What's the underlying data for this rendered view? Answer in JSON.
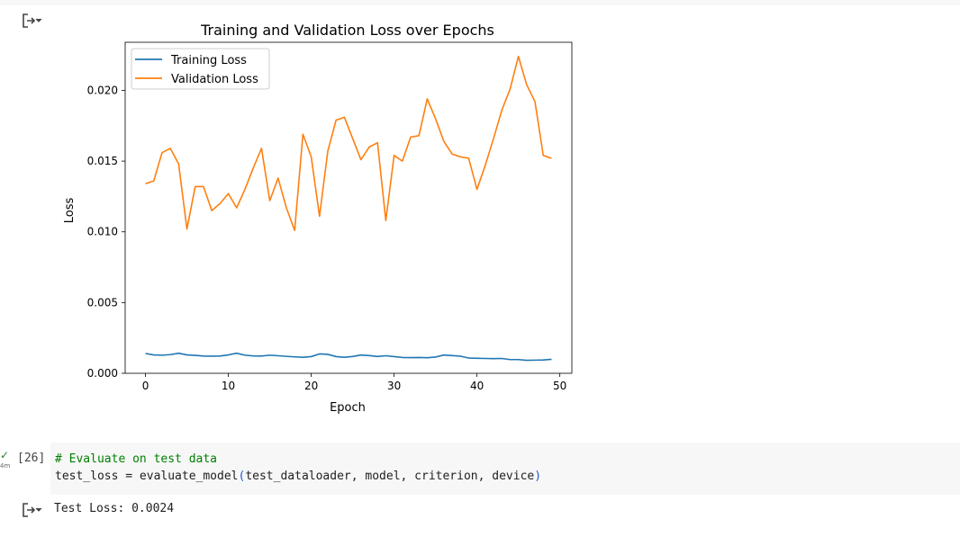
{
  "output_area": {
    "icon": "output-toggle-icon"
  },
  "chart_data": {
    "type": "line",
    "title": "Training and Validation Loss over Epochs",
    "xlabel": "Epoch",
    "ylabel": "Loss",
    "xlim": [
      -2.45,
      51.45
    ],
    "ylim": [
      0,
      0.0234
    ],
    "xticks": [
      0,
      10,
      20,
      30,
      40,
      50
    ],
    "xtick_labels": [
      "0",
      "10",
      "20",
      "30",
      "40",
      "50"
    ],
    "yticks": [
      0.0,
      0.005,
      0.01,
      0.015,
      0.02
    ],
    "ytick_labels": [
      "0.000",
      "0.005",
      "0.010",
      "0.015",
      "0.020"
    ],
    "grid": false,
    "legend_position": "upper-left",
    "x": [
      0,
      1,
      2,
      3,
      4,
      5,
      6,
      7,
      8,
      9,
      10,
      11,
      12,
      13,
      14,
      15,
      16,
      17,
      18,
      19,
      20,
      21,
      22,
      23,
      24,
      25,
      26,
      27,
      28,
      29,
      30,
      31,
      32,
      33,
      34,
      35,
      36,
      37,
      38,
      39,
      40,
      41,
      42,
      43,
      44,
      45,
      46,
      47,
      48,
      49
    ],
    "series": [
      {
        "name": "Training Loss",
        "color": "#1f77b4",
        "values": [
          0.0014,
          0.0013,
          0.00128,
          0.00132,
          0.00142,
          0.0013,
          0.00127,
          0.00122,
          0.00121,
          0.00122,
          0.0013,
          0.00142,
          0.00128,
          0.00123,
          0.00122,
          0.00128,
          0.00124,
          0.0012,
          0.00116,
          0.00113,
          0.00118,
          0.00137,
          0.00134,
          0.00118,
          0.00113,
          0.00119,
          0.00129,
          0.00125,
          0.00119,
          0.00124,
          0.00118,
          0.00112,
          0.00111,
          0.00112,
          0.0011,
          0.00115,
          0.00129,
          0.00125,
          0.00121,
          0.00108,
          0.00106,
          0.00105,
          0.00104,
          0.00105,
          0.00097,
          0.00097,
          0.00092,
          0.00093,
          0.00094,
          0.00099
        ]
      },
      {
        "name": "Validation Loss",
        "color": "#ff7f0e",
        "values": [
          0.0134,
          0.0136,
          0.0156,
          0.0159,
          0.0148,
          0.0102,
          0.0132,
          0.0132,
          0.0115,
          0.012,
          0.0127,
          0.0117,
          0.013,
          0.0145,
          0.0159,
          0.0122,
          0.0138,
          0.0117,
          0.0101,
          0.0169,
          0.0153,
          0.0111,
          0.0157,
          0.0179,
          0.0181,
          0.0166,
          0.0151,
          0.016,
          0.0163,
          0.0108,
          0.0154,
          0.015,
          0.0167,
          0.0168,
          0.0194,
          0.018,
          0.0164,
          0.0155,
          0.0153,
          0.0152,
          0.013,
          0.0147,
          0.0166,
          0.0186,
          0.0201,
          0.0224,
          0.0204,
          0.0192,
          0.0154,
          0.0152
        ]
      }
    ]
  },
  "code_cell": {
    "execution_count": "[26]",
    "status": "✓",
    "time": "4m",
    "line1_comment": "# Evaluate on test data",
    "line2_prefix": "test_loss = evaluate_model",
    "line2_open_paren": "(",
    "line2_args": "test_dataloader, model, criterion, device",
    "line2_close_paren": ")"
  },
  "result_output": {
    "icon": "output-toggle-icon",
    "text": "Test Loss: 0.0024"
  }
}
